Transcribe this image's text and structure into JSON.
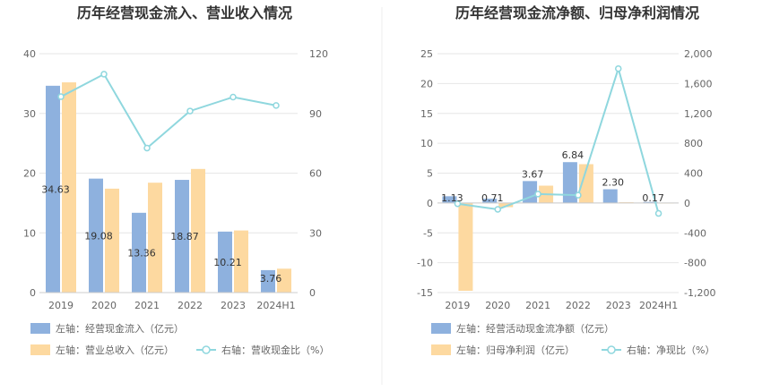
{
  "chart_data": [
    {
      "type": "bar",
      "title": "历年经营现金流入、营业收入情况",
      "categories": [
        "2019",
        "2020",
        "2021",
        "2022",
        "2023",
        "2024H1"
      ],
      "left_axis": {
        "min": 0,
        "max": 40,
        "ticks": [
          "0",
          "10",
          "20",
          "30",
          "40"
        ],
        "tick_values": [
          0,
          10,
          20,
          30,
          40
        ]
      },
      "right_axis": {
        "min": 0,
        "max": 120,
        "ticks": [
          "0",
          "30",
          "60",
          "90",
          "120"
        ],
        "tick_values": [
          0,
          30,
          60,
          90,
          120
        ]
      },
      "series": [
        {
          "name": "左轴：经营现金流入（亿元）",
          "kind": "bar",
          "axis": "left",
          "color": "#8eb1de",
          "values": [
            34.63,
            19.08,
            13.36,
            18.87,
            10.21,
            3.76
          ],
          "labels": [
            "34.63",
            "19.08",
            "13.36",
            "18.87",
            "10.21",
            "3.76"
          ]
        },
        {
          "name": "左轴：营业总收入（亿元）",
          "kind": "bar",
          "axis": "left",
          "color": "#fdd9a0",
          "values": [
            35.2,
            17.4,
            18.4,
            20.7,
            10.4,
            4.0
          ]
        },
        {
          "name": "右轴：营收现金比（%）",
          "kind": "line",
          "axis": "right",
          "color": "#8fd7de",
          "values": [
            98.4,
            109.7,
            72.6,
            91.2,
            98.2,
            94.0
          ]
        }
      ],
      "legend_rows": [
        [
          0
        ],
        [
          1,
          2
        ]
      ],
      "grid": true
    },
    {
      "type": "bar",
      "title": "历年经营现金流净额、归母净利润情况",
      "categories": [
        "2019",
        "2020",
        "2021",
        "2022",
        "2023",
        "2024H1"
      ],
      "left_axis": {
        "min": -15,
        "max": 25,
        "ticks": [
          "-15",
          "-10",
          "-5",
          "0",
          "5",
          "10",
          "15",
          "20",
          "25"
        ],
        "tick_values": [
          -15,
          -10,
          -5,
          0,
          5,
          10,
          15,
          20,
          25
        ]
      },
      "right_axis": {
        "min": -1200,
        "max": 2000,
        "ticks": [
          "-1,200",
          "-800",
          "-400",
          "0",
          "400",
          "800",
          "1,200",
          "1,600",
          "2,000"
        ],
        "tick_values": [
          -1200,
          -800,
          -400,
          0,
          400,
          800,
          1200,
          1600,
          2000
        ]
      },
      "series": [
        {
          "name": "左轴：经营活动现金流净额（亿元）",
          "kind": "bar",
          "axis": "left",
          "color": "#8eb1de",
          "values": [
            1.13,
            0.71,
            3.67,
            6.84,
            2.3,
            0.17
          ],
          "labels": [
            "1.13",
            "0.71",
            "3.67",
            "6.84",
            "2.30",
            "0.17"
          ]
        },
        {
          "name": "左轴：归母净利润（亿元）",
          "kind": "bar",
          "axis": "left",
          "color": "#fdd9a0",
          "values": [
            -14.7,
            -0.7,
            2.9,
            6.5,
            0.12,
            0.05
          ]
        },
        {
          "name": "右轴：净现比（%）",
          "kind": "line",
          "axis": "right",
          "color": "#8fd7de",
          "values": [
            -10,
            -85,
            120,
            105,
            1800,
            -140
          ]
        }
      ],
      "legend_rows": [
        [
          0
        ],
        [
          1,
          2
        ]
      ],
      "grid": true
    }
  ]
}
